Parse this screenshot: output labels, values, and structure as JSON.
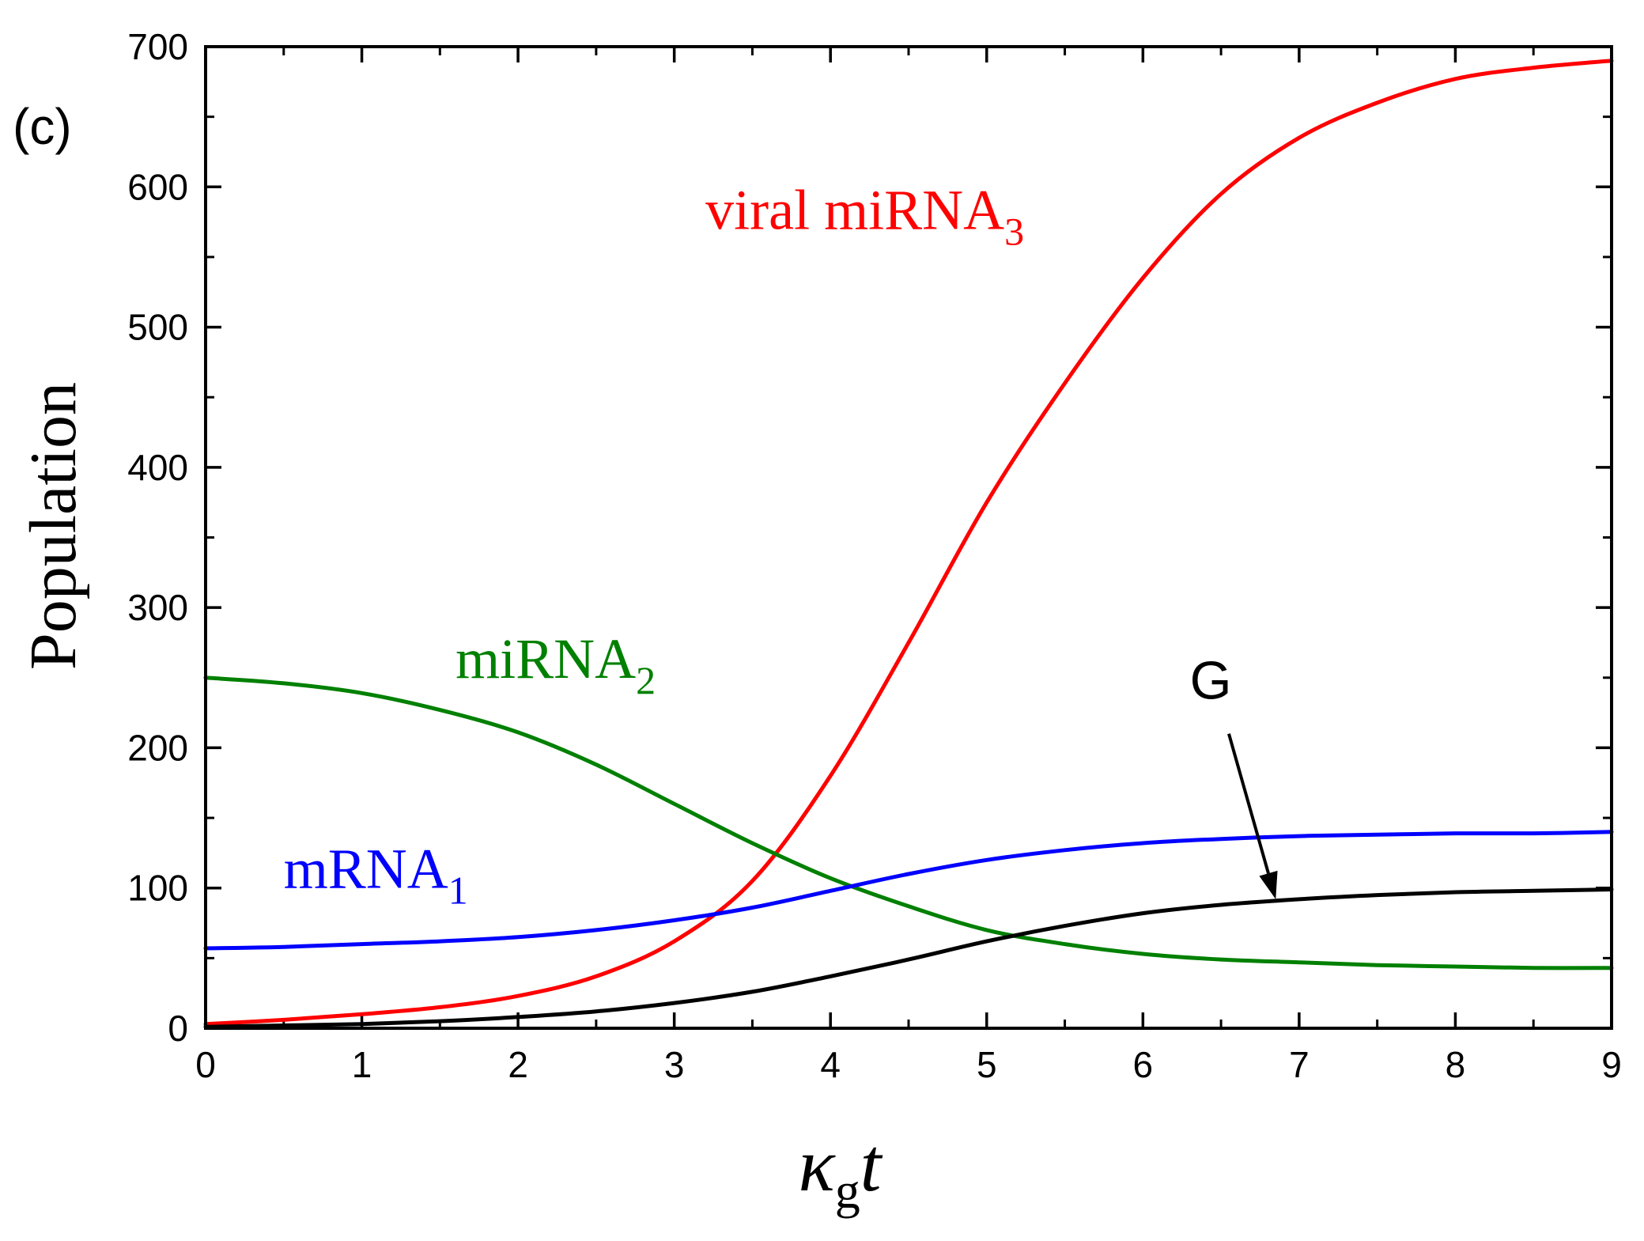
{
  "panel_label": "(c)",
  "chart_data": {
    "type": "line",
    "title": "",
    "xlabel": {
      "main": "κ",
      "sub": "g",
      "tail": "t"
    },
    "ylabel": "Population",
    "xlim": [
      0,
      9
    ],
    "ylim": [
      0,
      700
    ],
    "xticks": [
      0,
      1,
      2,
      3,
      4,
      5,
      6,
      7,
      8,
      9
    ],
    "yticks": [
      0,
      100,
      200,
      300,
      400,
      500,
      600,
      700
    ],
    "x_minor_step": 0.5,
    "y_minor_step": 50,
    "grid": false,
    "series": [
      {
        "id": "viral-mirna3",
        "name": "viral miRNA3",
        "label_main": "viral miRNA",
        "label_sub": "3",
        "label_anchor": [
          3.2,
          570
        ],
        "color": "#ff0000",
        "x": [
          0,
          0.5,
          1,
          1.5,
          2,
          2.5,
          3,
          3.5,
          4,
          4.5,
          5,
          5.5,
          6,
          6.5,
          7,
          7.5,
          8,
          8.5,
          9
        ],
        "y": [
          3,
          6,
          10,
          15,
          23,
          37,
          62,
          105,
          180,
          275,
          375,
          460,
          535,
          595,
          635,
          660,
          677,
          685,
          690
        ]
      },
      {
        "id": "mirna2",
        "name": "miRNA2",
        "label_main": "miRNA",
        "label_sub": "2",
        "label_anchor": [
          1.6,
          250
        ],
        "color": "#008000",
        "x": [
          0,
          0.5,
          1,
          1.5,
          2,
          2.5,
          3,
          3.5,
          4,
          4.5,
          5,
          5.5,
          6,
          6.5,
          7,
          7.5,
          8,
          8.5,
          9
        ],
        "y": [
          250,
          246,
          239,
          227,
          211,
          188,
          160,
          132,
          107,
          87,
          70,
          60,
          53,
          49,
          47,
          45,
          44,
          43,
          43
        ]
      },
      {
        "id": "mrna1",
        "name": "mRNA1",
        "label_main": "mRNA",
        "label_sub": "1",
        "label_anchor": [
          0.5,
          100
        ],
        "color": "#0000ff",
        "x": [
          0,
          0.5,
          1,
          1.5,
          2,
          2.5,
          3,
          3.5,
          4,
          4.5,
          5,
          5.5,
          6,
          6.5,
          7,
          7.5,
          8,
          8.5,
          9
        ],
        "y": [
          57,
          58,
          60,
          62,
          65,
          70,
          77,
          86,
          98,
          110,
          120,
          127,
          132,
          135,
          137,
          138,
          139,
          139,
          140
        ]
      },
      {
        "id": "g",
        "name": "G",
        "label_main": "G",
        "label_sub": "",
        "label_anchor": [
          6.3,
          235
        ],
        "color": "#000000",
        "x": [
          0,
          0.5,
          1,
          1.5,
          2,
          2.5,
          3,
          3.5,
          4,
          4.5,
          5,
          5.5,
          6,
          6.5,
          7,
          7.5,
          8,
          8.5,
          9
        ],
        "y": [
          1,
          2,
          3,
          5,
          8,
          12,
          18,
          26,
          37,
          49,
          62,
          73,
          82,
          88,
          92,
          95,
          97,
          98,
          99
        ]
      }
    ],
    "annotations": [
      {
        "type": "arrow",
        "label": "G",
        "from": [
          6.55,
          210
        ],
        "to": [
          6.85,
          92
        ]
      }
    ]
  }
}
